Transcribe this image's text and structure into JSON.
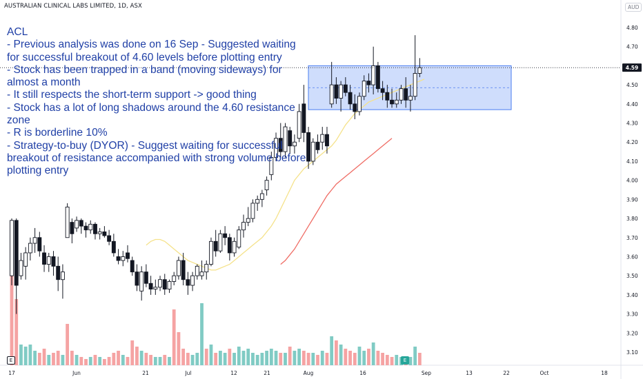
{
  "header": {
    "title": "AUSTRALIAN CLINICAL LABS LIMITED, 1D, ASX",
    "currency": "AUD"
  },
  "notes": {
    "lines": [
      "ACL",
      "- Previous analysis was done on 16 Sep - Suggested waiting for successful breakout of 4.60 levels before plotting entry",
      "- Stock has been trapped in a band (moving sideways) for almost a month",
      "- It still respects the short-term support -> good thing",
      "- Stock has a lot of long shadows around the 4.60 resistance zone",
      "- R is borderline 10%",
      "- Strategy-to-buy (DYOR) - Suggest waiting for successful breakout of resistance accompanied with strong volume before plotting entry"
    ]
  },
  "badges": {
    "left": "E",
    "mid": "E"
  },
  "chart_data": {
    "type": "candlestick",
    "title": "AUSTRALIAN CLINICAL LABS LIMITED, 1D, ASX",
    "currency": "AUD",
    "y_ticks": [
      3.1,
      3.2,
      3.3,
      3.4,
      3.5,
      3.6,
      3.7,
      3.8,
      3.9,
      4.0,
      4.1,
      4.2,
      4.3,
      4.4,
      4.5,
      4.6,
      4.7,
      4.8
    ],
    "ylim": [
      3.05,
      4.86
    ],
    "x_ticks": [
      "17",
      "Jun",
      "21",
      "Jul",
      "12",
      "21",
      "Aug",
      "16",
      "Sep",
      "13",
      "22",
      "Oct",
      "18"
    ],
    "last_price": "4.59",
    "resistance_band": [
      4.37,
      4.6
    ],
    "candles": [
      {
        "o": 3.5,
        "h": 3.8,
        "l": 3.45,
        "c": 3.79
      },
      {
        "o": 3.79,
        "h": 3.8,
        "l": 3.3,
        "c": 3.45
      },
      {
        "o": 3.5,
        "h": 3.62,
        "l": 3.48,
        "c": 3.58
      },
      {
        "o": 3.55,
        "h": 3.65,
        "l": 3.48,
        "c": 3.62
      },
      {
        "o": 3.62,
        "h": 3.7,
        "l": 3.58,
        "c": 3.67
      },
      {
        "o": 3.67,
        "h": 3.75,
        "l": 3.62,
        "c": 3.7
      },
      {
        "o": 3.7,
        "h": 3.73,
        "l": 3.6,
        "c": 3.63
      },
      {
        "o": 3.62,
        "h": 3.66,
        "l": 3.52,
        "c": 3.56
      },
      {
        "o": 3.56,
        "h": 3.62,
        "l": 3.52,
        "c": 3.6
      },
      {
        "o": 3.6,
        "h": 3.63,
        "l": 3.5,
        "c": 3.55
      },
      {
        "o": 3.55,
        "h": 3.6,
        "l": 3.42,
        "c": 3.48
      },
      {
        "o": 3.48,
        "h": 3.56,
        "l": 3.38,
        "c": 3.52
      },
      {
        "o": 3.7,
        "h": 3.88,
        "l": 3.7,
        "c": 3.86
      },
      {
        "o": 3.78,
        "h": 3.8,
        "l": 3.67,
        "c": 3.72
      },
      {
        "o": 3.75,
        "h": 3.81,
        "l": 3.73,
        "c": 3.79
      },
      {
        "o": 3.79,
        "h": 3.8,
        "l": 3.72,
        "c": 3.76
      },
      {
        "o": 3.76,
        "h": 3.78,
        "l": 3.7,
        "c": 3.74
      },
      {
        "o": 3.74,
        "h": 3.79,
        "l": 3.72,
        "c": 3.77
      },
      {
        "o": 3.77,
        "h": 3.78,
        "l": 3.69,
        "c": 3.72
      },
      {
        "o": 3.72,
        "h": 3.75,
        "l": 3.69,
        "c": 3.73
      },
      {
        "o": 3.73,
        "h": 3.76,
        "l": 3.7,
        "c": 3.71
      },
      {
        "o": 3.71,
        "h": 3.74,
        "l": 3.66,
        "c": 3.68
      },
      {
        "o": 3.68,
        "h": 3.72,
        "l": 3.6,
        "c": 3.62
      },
      {
        "o": 3.6,
        "h": 3.64,
        "l": 3.56,
        "c": 3.58
      },
      {
        "o": 3.58,
        "h": 3.63,
        "l": 3.55,
        "c": 3.6
      },
      {
        "o": 3.62,
        "h": 3.66,
        "l": 3.57,
        "c": 3.59
      },
      {
        "o": 3.58,
        "h": 3.6,
        "l": 3.5,
        "c": 3.52
      },
      {
        "o": 3.52,
        "h": 3.56,
        "l": 3.42,
        "c": 3.45
      },
      {
        "o": 3.42,
        "h": 3.55,
        "l": 3.37,
        "c": 3.52
      },
      {
        "o": 3.52,
        "h": 3.56,
        "l": 3.44,
        "c": 3.46
      },
      {
        "o": 3.46,
        "h": 3.5,
        "l": 3.4,
        "c": 3.43
      },
      {
        "o": 3.43,
        "h": 3.48,
        "l": 3.4,
        "c": 3.44
      },
      {
        "o": 3.44,
        "h": 3.5,
        "l": 3.42,
        "c": 3.48
      },
      {
        "o": 3.48,
        "h": 3.51,
        "l": 3.4,
        "c": 3.43
      },
      {
        "o": 3.43,
        "h": 3.48,
        "l": 3.41,
        "c": 3.47
      },
      {
        "o": 3.47,
        "h": 3.52,
        "l": 3.45,
        "c": 3.5
      },
      {
        "o": 3.5,
        "h": 3.6,
        "l": 3.48,
        "c": 3.58
      },
      {
        "o": 3.58,
        "h": 3.62,
        "l": 3.45,
        "c": 3.48
      },
      {
        "o": 3.48,
        "h": 3.52,
        "l": 3.4,
        "c": 3.45
      },
      {
        "o": 3.45,
        "h": 3.52,
        "l": 3.42,
        "c": 3.5
      },
      {
        "o": 3.5,
        "h": 3.56,
        "l": 3.48,
        "c": 3.55
      },
      {
        "o": 3.5,
        "h": 3.58,
        "l": 3.48,
        "c": 3.52
      },
      {
        "o": 3.52,
        "h": 3.58,
        "l": 3.48,
        "c": 3.56
      },
      {
        "o": 3.56,
        "h": 3.7,
        "l": 3.55,
        "c": 3.68
      },
      {
        "o": 3.68,
        "h": 3.74,
        "l": 3.6,
        "c": 3.63
      },
      {
        "o": 3.63,
        "h": 3.74,
        "l": 3.62,
        "c": 3.72
      },
      {
        "o": 3.72,
        "h": 3.76,
        "l": 3.66,
        "c": 3.7
      },
      {
        "o": 3.7,
        "h": 3.72,
        "l": 3.58,
        "c": 3.62
      },
      {
        "o": 3.62,
        "h": 3.7,
        "l": 3.6,
        "c": 3.68
      },
      {
        "o": 3.65,
        "h": 3.76,
        "l": 3.64,
        "c": 3.74
      },
      {
        "o": 3.74,
        "h": 3.82,
        "l": 3.7,
        "c": 3.78
      },
      {
        "o": 3.78,
        "h": 3.86,
        "l": 3.76,
        "c": 3.8
      },
      {
        "o": 3.8,
        "h": 3.9,
        "l": 3.78,
        "c": 3.88
      },
      {
        "o": 3.88,
        "h": 3.92,
        "l": 3.84,
        "c": 3.9
      },
      {
        "o": 3.9,
        "h": 3.95,
        "l": 3.86,
        "c": 3.93
      },
      {
        "o": 3.95,
        "h": 4.02,
        "l": 3.92,
        "c": 4.0
      },
      {
        "o": 4.03,
        "h": 4.15,
        "l": 4.0,
        "c": 4.12
      },
      {
        "o": 4.12,
        "h": 4.25,
        "l": 4.1,
        "c": 4.22
      },
      {
        "o": 4.22,
        "h": 4.3,
        "l": 4.12,
        "c": 4.15
      },
      {
        "o": 4.15,
        "h": 4.3,
        "l": 4.12,
        "c": 4.28
      },
      {
        "o": 4.26,
        "h": 4.28,
        "l": 4.14,
        "c": 4.18
      },
      {
        "o": 4.18,
        "h": 4.24,
        "l": 4.14,
        "c": 4.2
      },
      {
        "o": 4.22,
        "h": 4.4,
        "l": 4.2,
        "c": 4.36
      },
      {
        "o": 4.4,
        "h": 4.5,
        "l": 4.2,
        "c": 4.25
      },
      {
        "o": 4.25,
        "h": 4.28,
        "l": 4.06,
        "c": 4.1
      },
      {
        "o": 4.1,
        "h": 4.22,
        "l": 4.08,
        "c": 4.2
      },
      {
        "o": 4.2,
        "h": 4.24,
        "l": 4.14,
        "c": 4.16
      },
      {
        "o": 4.2,
        "h": 4.28,
        "l": 4.16,
        "c": 4.24
      },
      {
        "o": 4.24,
        "h": 4.28,
        "l": 4.14,
        "c": 4.18
      },
      {
        "o": 4.4,
        "h": 4.62,
        "l": 4.38,
        "c": 4.5
      },
      {
        "o": 4.5,
        "h": 4.54,
        "l": 4.4,
        "c": 4.43
      },
      {
        "o": 4.43,
        "h": 4.52,
        "l": 4.36,
        "c": 4.5
      },
      {
        "o": 4.5,
        "h": 4.54,
        "l": 4.44,
        "c": 4.46
      },
      {
        "o": 4.46,
        "h": 4.5,
        "l": 4.37,
        "c": 4.4
      },
      {
        "o": 4.4,
        "h": 4.45,
        "l": 4.32,
        "c": 4.36
      },
      {
        "o": 4.36,
        "h": 4.46,
        "l": 4.34,
        "c": 4.44
      },
      {
        "o": 4.44,
        "h": 4.55,
        "l": 4.42,
        "c": 4.52
      },
      {
        "o": 4.52,
        "h": 4.56,
        "l": 4.46,
        "c": 4.5
      },
      {
        "o": 4.5,
        "h": 4.7,
        "l": 4.45,
        "c": 4.6
      },
      {
        "o": 4.6,
        "h": 4.62,
        "l": 4.46,
        "c": 4.48
      },
      {
        "o": 4.48,
        "h": 4.52,
        "l": 4.42,
        "c": 4.46
      },
      {
        "o": 4.46,
        "h": 4.5,
        "l": 4.38,
        "c": 4.42
      },
      {
        "o": 4.42,
        "h": 4.48,
        "l": 4.38,
        "c": 4.4
      },
      {
        "o": 4.4,
        "h": 4.46,
        "l": 4.38,
        "c": 4.42
      },
      {
        "o": 4.42,
        "h": 4.5,
        "l": 4.4,
        "c": 4.48
      },
      {
        "o": 4.48,
        "h": 4.54,
        "l": 4.38,
        "c": 4.42
      },
      {
        "o": 4.42,
        "h": 4.5,
        "l": 4.36,
        "c": 4.44
      },
      {
        "o": 4.44,
        "h": 4.76,
        "l": 4.42,
        "c": 4.56
      },
      {
        "o": 4.56,
        "h": 4.64,
        "l": 4.54,
        "c": 4.59
      }
    ],
    "volume": [
      {
        "v": 2.2,
        "up": false
      },
      {
        "v": 1.6,
        "up": false
      },
      {
        "v": 0.5,
        "up": true
      },
      {
        "v": 0.45,
        "up": true
      },
      {
        "v": 0.5,
        "up": true
      },
      {
        "v": 0.35,
        "up": true
      },
      {
        "v": 0.3,
        "up": false
      },
      {
        "v": 0.4,
        "up": false
      },
      {
        "v": 0.25,
        "up": true
      },
      {
        "v": 0.3,
        "up": false
      },
      {
        "v": 0.35,
        "up": false
      },
      {
        "v": 0.25,
        "up": true
      },
      {
        "v": 1.0,
        "up": false
      },
      {
        "v": 0.35,
        "up": false
      },
      {
        "v": 0.25,
        "up": true
      },
      {
        "v": 0.2,
        "up": false
      },
      {
        "v": 0.15,
        "up": false
      },
      {
        "v": 0.2,
        "up": true
      },
      {
        "v": 0.25,
        "up": false
      },
      {
        "v": 0.2,
        "up": true
      },
      {
        "v": 0.15,
        "up": false
      },
      {
        "v": 0.2,
        "up": false
      },
      {
        "v": 0.3,
        "up": false
      },
      {
        "v": 0.35,
        "up": false
      },
      {
        "v": 0.25,
        "up": true
      },
      {
        "v": 0.2,
        "up": false
      },
      {
        "v": 0.6,
        "up": false
      },
      {
        "v": 0.45,
        "up": false
      },
      {
        "v": 0.35,
        "up": true
      },
      {
        "v": 0.3,
        "up": false
      },
      {
        "v": 0.25,
        "up": false
      },
      {
        "v": 0.2,
        "up": true
      },
      {
        "v": 0.2,
        "up": true
      },
      {
        "v": 0.25,
        "up": false
      },
      {
        "v": 0.2,
        "up": true
      },
      {
        "v": 1.35,
        "up": false
      },
      {
        "v": 0.8,
        "up": false
      },
      {
        "v": 0.4,
        "up": false
      },
      {
        "v": 0.3,
        "up": false
      },
      {
        "v": 0.25,
        "up": true
      },
      {
        "v": 0.3,
        "up": true
      },
      {
        "v": 1.5,
        "up": true
      },
      {
        "v": 0.4,
        "up": false
      },
      {
        "v": 0.5,
        "up": true
      },
      {
        "v": 0.3,
        "up": false
      },
      {
        "v": 0.35,
        "up": true
      },
      {
        "v": 0.3,
        "up": true
      },
      {
        "v": 0.4,
        "up": false
      },
      {
        "v": 0.3,
        "up": true
      },
      {
        "v": 0.45,
        "up": true
      },
      {
        "v": 0.35,
        "up": true
      },
      {
        "v": 0.4,
        "up": true
      },
      {
        "v": 0.3,
        "up": true
      },
      {
        "v": 0.25,
        "up": true
      },
      {
        "v": 0.3,
        "up": true
      },
      {
        "v": 0.35,
        "up": true
      },
      {
        "v": 0.4,
        "up": true
      },
      {
        "v": 0.35,
        "up": true
      },
      {
        "v": 0.3,
        "up": false
      },
      {
        "v": 0.3,
        "up": true
      },
      {
        "v": 0.45,
        "up": false
      },
      {
        "v": 0.35,
        "up": true
      },
      {
        "v": 0.4,
        "up": true
      },
      {
        "v": 0.35,
        "up": false
      },
      {
        "v": 0.3,
        "up": false
      },
      {
        "v": 0.3,
        "up": true
      },
      {
        "v": 0.25,
        "up": false
      },
      {
        "v": 0.35,
        "up": true
      },
      {
        "v": 0.3,
        "up": false
      },
      {
        "v": 0.7,
        "up": true
      },
      {
        "v": 0.6,
        "up": false
      },
      {
        "v": 0.5,
        "up": true
      },
      {
        "v": 0.4,
        "up": false
      },
      {
        "v": 0.35,
        "up": false
      },
      {
        "v": 0.3,
        "up": false
      },
      {
        "v": 0.45,
        "up": true
      },
      {
        "v": 0.35,
        "up": true
      },
      {
        "v": 0.4,
        "up": false
      },
      {
        "v": 0.55,
        "up": true
      },
      {
        "v": 0.35,
        "up": false
      },
      {
        "v": 0.3,
        "up": false
      },
      {
        "v": 0.25,
        "up": false
      },
      {
        "v": 0.2,
        "up": false
      },
      {
        "v": 0.25,
        "up": true
      },
      {
        "v": 0.2,
        "up": true
      },
      {
        "v": 0.15,
        "up": false
      },
      {
        "v": 0.2,
        "up": true
      },
      {
        "v": 0.45,
        "up": true
      },
      {
        "v": 0.3,
        "up": false
      }
    ],
    "ma_short": {
      "color": "#f5e28a",
      "start": 29,
      "values": [
        3.66,
        3.68,
        3.69,
        3.69,
        3.68,
        3.66,
        3.64,
        3.62,
        3.6,
        3.58,
        3.57,
        3.56,
        3.55,
        3.54,
        3.53,
        3.53,
        3.54,
        3.55,
        3.56,
        3.58,
        3.6,
        3.62,
        3.64,
        3.66,
        3.68,
        3.7,
        3.73,
        3.76,
        3.8,
        3.85,
        3.9,
        3.95,
        4.0,
        4.03,
        4.06,
        4.08,
        4.1,
        4.12,
        4.14,
        4.16,
        4.18,
        4.21,
        4.25,
        4.29,
        4.32,
        4.35,
        4.37,
        4.39,
        4.41,
        4.42,
        4.43,
        4.44,
        4.45,
        4.46,
        4.47,
        4.48,
        4.49,
        4.5,
        4.51,
        4.52,
        4.53
      ]
    },
    "ma_long": {
      "color": "#ef6c64",
      "start": 58,
      "values": [
        3.56,
        3.58,
        3.61,
        3.64,
        3.68,
        3.72,
        3.76,
        3.8,
        3.84,
        3.88,
        3.92,
        3.95,
        3.98,
        4.0,
        4.02,
        4.04,
        4.06,
        4.08,
        4.1,
        4.12,
        4.14,
        4.16,
        4.18,
        4.2,
        4.22
      ]
    }
  }
}
